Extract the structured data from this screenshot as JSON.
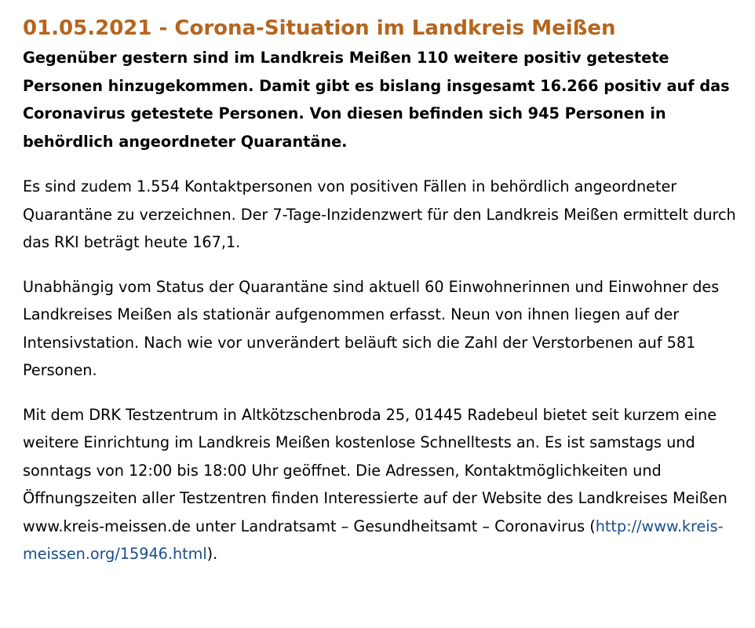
{
  "article": {
    "title": "01.05.2021 - Corona-Situation im Landkreis Meißen",
    "lead": "Gegenüber gestern sind im Landkreis Meißen 110 weitere positiv getestete Personen hinzugekommen. Damit gibt es bislang insgesamt 16.266 positiv auf das Coronavirus getestete Personen. Von diesen befinden sich 945 Personen in behördlich angeordneter Quarantäne.",
    "paragraphs": [
      "Es sind zudem 1.554 Kontaktpersonen von positiven Fällen in behördlich angeordneter Quarantäne zu verzeichnen. Der 7-Tage-Inzidenzwert für den Landkreis Meißen ermittelt durch das RKI beträgt heute 167,1.",
      "Unabhängig vom Status der Quarantäne sind aktuell 60 Einwohnerinnen und Einwohner des Landkreises Meißen als stationär aufgenommen erfasst. Neun von ihnen liegen auf der Intensivstation. Nach wie vor unverändert beläuft sich die Zahl der Verstorbenen auf 581 Personen."
    ],
    "last_paragraph": {
      "text_before_link": "Mit dem DRK Testzentrum in Altkötzschenbroda 25, 01445 Radebeul bietet seit kurzem eine weitere Einrichtung im Landkreis Meißen kostenlose Schnelltests an. Es ist samstags und sonntags von 12:00 bis 18:00 Uhr geöffnet. Die Adressen, Kontaktmöglichkeiten und Öffnungszeiten aller Testzentren finden Interessierte auf der Website des Landkreises Meißen www.kreis-meissen.de unter Landratsamt – Gesundheitsamt – Coronavirus (",
      "link_text": "http://www.kreis-meissen.org/15946.html",
      "link_href": "http://www.kreis-meissen.org/15946.html",
      "text_after_link": ")."
    }
  },
  "colors": {
    "title": "#b5651d",
    "link": "#1a4d8a",
    "text": "#000000",
    "background": "#ffffff"
  }
}
